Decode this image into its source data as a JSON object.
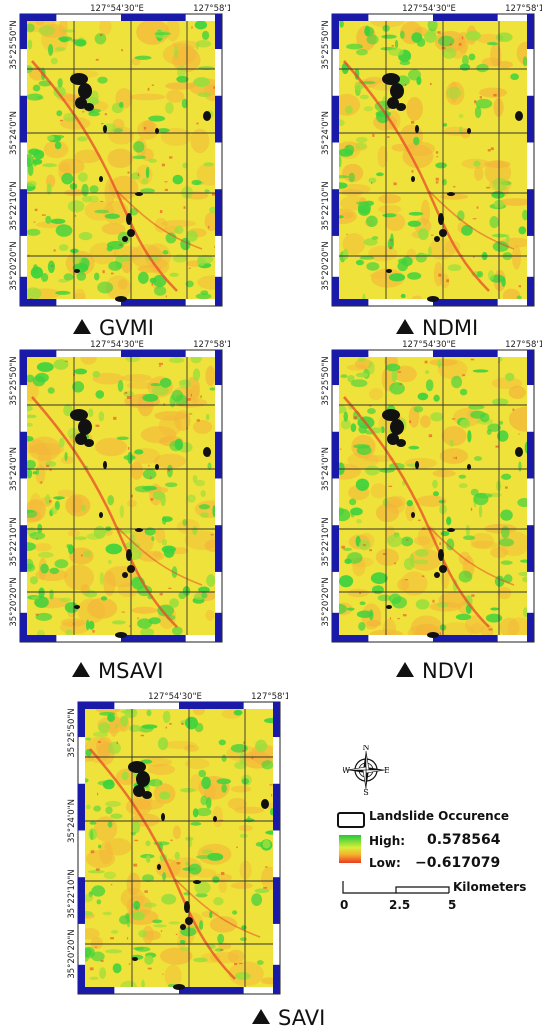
{
  "panels": [
    {
      "id": "gvmi",
      "caption": "GVMI"
    },
    {
      "id": "ndmi",
      "caption": "NDMI"
    },
    {
      "id": "msavi",
      "caption": "MSAVI"
    },
    {
      "id": "ndvi",
      "caption": "NDVI"
    },
    {
      "id": "savi",
      "caption": "SAVI"
    }
  ],
  "axis": {
    "top_ticks": [
      "127°54'30\"E",
      "127°58'10\"E"
    ],
    "left_ticks": [
      "35°25'50\"N",
      "35°24'0\"N",
      "35°22'10\"N",
      "35°20'20\"N"
    ]
  },
  "legend": {
    "compass": {
      "north": "N",
      "south": "S",
      "east": "E",
      "west": "W"
    },
    "landslide_label": "Landslide Occurence",
    "high_label": "High:",
    "high_value": "0.578564",
    "low_label": "Low:",
    "low_value": "−0.617079",
    "scale_ticks": [
      "0",
      "2.5",
      "5"
    ],
    "scale_unit": "Kilometers"
  },
  "colors": {
    "frame_blue": "#1a1aa8",
    "grid": "#333333",
    "high_green": "#3dd23d",
    "mid_yellow": "#f2ee3a",
    "low_red": "#e84a2a"
  }
}
